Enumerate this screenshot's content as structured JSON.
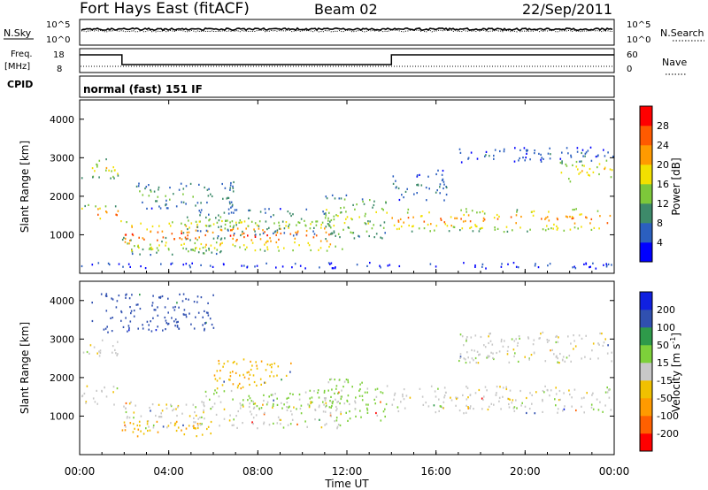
{
  "header": {
    "title": "Fort Hays East (fitACF)",
    "beam": "Beam 02",
    "date": "22/Sep/2011"
  },
  "top_panels": {
    "nsky_label": "N.Sky",
    "nsky_ticks": [
      "10^5",
      "10^0"
    ],
    "nsearch_label": "N.Search",
    "nsearch_ticks": [
      "10^5",
      "10^0"
    ],
    "freq_label_line1": "Freq.",
    "freq_label_line2": "[MHz]",
    "freq_ticks": [
      "18",
      "8"
    ],
    "nave_label": "Nave",
    "nave_ticks": [
      "60",
      "0"
    ],
    "cpid_label": "CPID",
    "cpid_text": "normal (fast) 151 IF"
  },
  "chart_data": [
    {
      "type": "line",
      "name": "N.Sky / N.Search",
      "note": "noise level traces, nearly constant near top of panel",
      "x_range_hours": [
        0,
        24
      ]
    },
    {
      "type": "line",
      "name": "Freq / Nave",
      "freq_segments": [
        {
          "from": 0.0,
          "to": 1.9,
          "level": "high"
        },
        {
          "from": 1.9,
          "to": 14.0,
          "level": "low"
        },
        {
          "from": 14.0,
          "to": 24.0,
          "level": "high"
        }
      ]
    },
    {
      "type": "heatmap",
      "name": "power",
      "ylabel": "Slant Range [km]",
      "yticks": [
        "1000",
        "2000",
        "3000",
        "4000"
      ],
      "colorbar_label": "Power [dB]",
      "colorbar_ticks": [
        "28",
        "24",
        "20",
        "16",
        "12",
        "8",
        "4"
      ],
      "colorbar_colors": [
        "#0000ff",
        "#2b5fbf",
        "#3d8a6a",
        "#7dc83a",
        "#f2e000",
        "#ff9a00",
        "#ff5a00",
        "#ff0000"
      ],
      "bands": [
        {
          "x0": 0.0,
          "x1": 1.7,
          "r0": 1350,
          "r1": 1800,
          "power": 22
        },
        {
          "x0": 0.0,
          "x1": 1.7,
          "r0": 2450,
          "r1": 3000,
          "power": 16
        },
        {
          "x0": 1.8,
          "x1": 6.5,
          "r0": 500,
          "r1": 1000,
          "power": 14
        },
        {
          "x0": 1.8,
          "x1": 11.8,
          "r0": 600,
          "r1": 1400,
          "power": 24
        },
        {
          "x0": 4.5,
          "x1": 11.5,
          "r0": 1000,
          "r1": 1700,
          "power": 12
        },
        {
          "x0": 2.5,
          "x1": 7.0,
          "r0": 1700,
          "r1": 2400,
          "power": 10
        },
        {
          "x0": 11.0,
          "x1": 13.8,
          "r0": 900,
          "r1": 2100,
          "power": 14
        },
        {
          "x0": 14.0,
          "x1": 23.9,
          "r0": 1100,
          "r1": 1700,
          "power": 22
        },
        {
          "x0": 14.0,
          "x1": 16.5,
          "r0": 1900,
          "r1": 2700,
          "power": 8
        },
        {
          "x0": 17.0,
          "x1": 24.0,
          "r0": 2900,
          "r1": 3300,
          "power": 6
        },
        {
          "x0": 21.5,
          "x1": 24.0,
          "r0": 2400,
          "r1": 2950,
          "power": 18
        },
        {
          "x0": 0.0,
          "x1": 24.0,
          "r0": 150,
          "r1": 300,
          "power": 4
        }
      ]
    },
    {
      "type": "heatmap",
      "name": "velocity",
      "ylabel": "Slant Range [km]",
      "yticks": [
        "1000",
        "2000",
        "3000",
        "4000"
      ],
      "colorbar_label_main": "Velocity [m s",
      "colorbar_label_sup": "-1",
      "colorbar_label_end": "]",
      "colorbar_ticks": [
        "200",
        "100",
        "50",
        "15",
        "-15",
        "-50",
        "-100",
        "-200"
      ],
      "colorbar_colors": [
        "#ff0000",
        "#ff6000",
        "#ff9a00",
        "#f0c000",
        "#c8c8c8",
        "#7dd03a",
        "#2e9a4a",
        "#3050b0",
        "#1020e0"
      ],
      "bands": [
        {
          "x0": 0.0,
          "x1": 1.7,
          "r0": 1300,
          "r1": 1800,
          "vel": 0
        },
        {
          "x0": 0.0,
          "x1": 1.7,
          "r0": 2500,
          "r1": 3000,
          "vel": 0
        },
        {
          "x0": 1.8,
          "x1": 11.8,
          "r0": 700,
          "r1": 1400,
          "vel": 0
        },
        {
          "x0": 1.8,
          "x1": 6.0,
          "r0": 500,
          "r1": 900,
          "vel": -40
        },
        {
          "x0": 5.5,
          "x1": 11.8,
          "r0": 1200,
          "r1": 1700,
          "vel": 25
        },
        {
          "x0": 6.0,
          "x1": 9.5,
          "r0": 1700,
          "r1": 2500,
          "vel": -40
        },
        {
          "x0": 11.0,
          "x1": 13.8,
          "r0": 900,
          "r1": 2000,
          "vel": 25
        },
        {
          "x0": 14.0,
          "x1": 24.0,
          "r0": 1100,
          "r1": 1800,
          "vel": 0
        },
        {
          "x0": 17.0,
          "x1": 24.0,
          "r0": 2400,
          "r1": 3200,
          "vel": 0
        },
        {
          "x0": 0.5,
          "x1": 6.0,
          "r0": 3200,
          "r1": 4200,
          "vel": 150
        }
      ]
    }
  ],
  "xaxis": {
    "label": "Time UT",
    "ticks": [
      "00:00",
      "04:00",
      "08:00",
      "12:00",
      "16:00",
      "20:00",
      "00:00"
    ]
  }
}
